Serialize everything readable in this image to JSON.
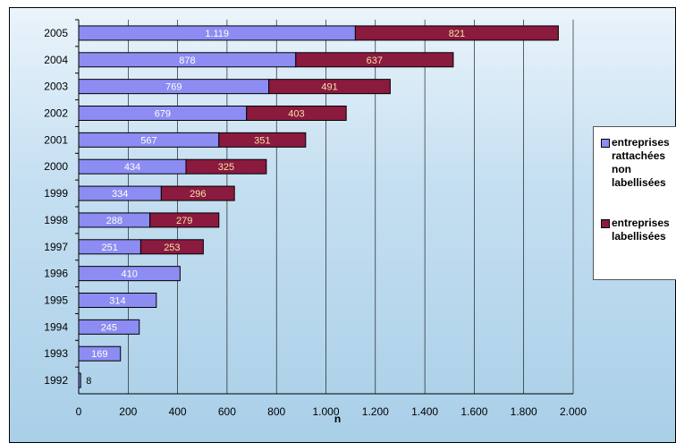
{
  "chart_data": {
    "type": "bar",
    "orientation": "horizontal",
    "stacked": true,
    "categories": [
      "2005",
      "2004",
      "2003",
      "2002",
      "2001",
      "2000",
      "1999",
      "1998",
      "1997",
      "1996",
      "1995",
      "1994",
      "1993",
      "1992"
    ],
    "series": [
      {
        "name": "entreprises rattachées non labellisées",
        "color": "#8c8cf2",
        "values": [
          1119,
          878,
          769,
          679,
          567,
          434,
          334,
          288,
          251,
          410,
          314,
          245,
          169,
          8
        ],
        "labels": [
          "1.119",
          "878",
          "769",
          "679",
          "567",
          "434",
          "334",
          "288",
          "251",
          "410",
          "314",
          "245",
          "169",
          "8"
        ]
      },
      {
        "name": "entreprises labellisées",
        "color": "#8b1a3f",
        "values": [
          821,
          637,
          491,
          403,
          351,
          325,
          296,
          279,
          253,
          0,
          0,
          0,
          0,
          0
        ],
        "labels": [
          "821",
          "637",
          "491",
          "403",
          "351",
          "325",
          "296",
          "279",
          "253",
          "",
          "",
          "",
          "",
          ""
        ]
      }
    ],
    "xlabel": "n",
    "xlim": [
      0,
      2000
    ],
    "xticks": [
      "0",
      "200",
      "400",
      "600",
      "800",
      "1.000",
      "1.200",
      "1.400",
      "1.600",
      "1.800",
      "2.000"
    ],
    "grid": true,
    "legend_position": "right"
  }
}
